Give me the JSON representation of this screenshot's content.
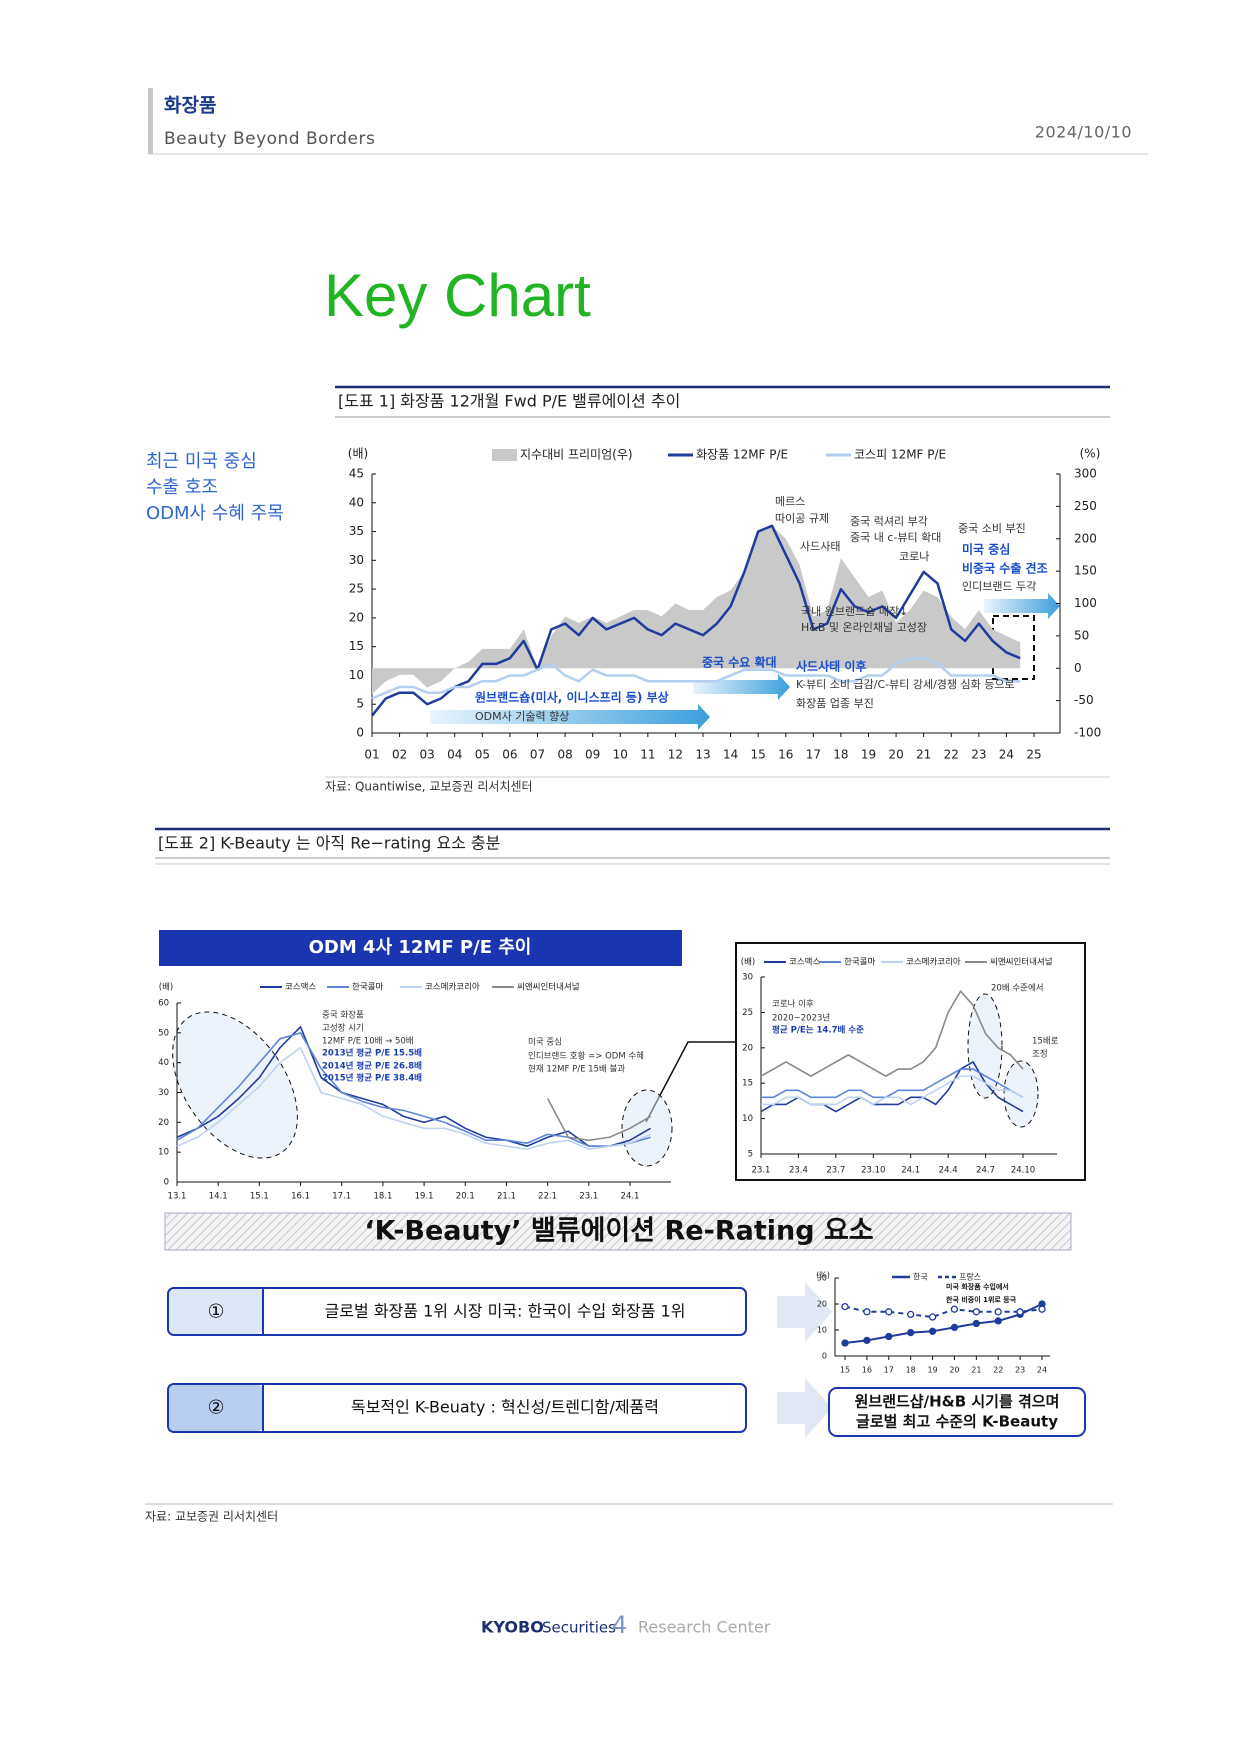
{
  "header": {
    "section": "화장품",
    "subtitle": "Beauty Beyond Borders",
    "date": "2024/10/10"
  },
  "key_chart": "Key Chart",
  "side_note": [
    "최근 미국 중심",
    "수출 호조",
    "ODM사 수혜 주목"
  ],
  "figure1": {
    "caption": "[도표 1] 화장품 12개월 Fwd P/E 밸류에이션 추이",
    "source": "자료: Quantiwise, 교보증권 리서치센터"
  },
  "figure2": {
    "caption": "[도표 2] K-Beauty 는 아직 Re−rating 요소 충분"
  },
  "rerating": {
    "title": "‘K-Beauty’ 밸류에이션 Re-Rating  요소",
    "items": [
      {
        "num": "①",
        "text": "글로벌 화장품 1위 시장 미국: 한국이 수입 화장품 1위"
      },
      {
        "num": "②",
        "text": "독보적인 K-Beuaty : 혁신성/트렌디함/제품력"
      }
    ],
    "callout": [
      "원브랜드샵/H&B 시기를 겪으며",
      "글로벌 최고 수준의 K-Beauty"
    ]
  },
  "source": "자료: 교보증권 리서치센터",
  "footer": {
    "brand": "KYOBO",
    "brand_suffix": "Securities",
    "page": 4,
    "label": "Research Center"
  },
  "chart_data": [
    {
      "type": "line",
      "y_label": "(배)",
      "y2_label": "(%)",
      "categories": [
        "01",
        null,
        "02",
        null,
        "03",
        null,
        "04",
        null,
        "05",
        null,
        "06",
        null,
        "07",
        null,
        "08",
        null,
        "09",
        null,
        "10",
        null,
        "11",
        null,
        "12",
        null,
        "13",
        null,
        "14",
        null,
        "15",
        null,
        "16",
        null,
        "17",
        null,
        "18",
        null,
        "19",
        null,
        "20",
        null,
        "21",
        null,
        "22",
        null,
        "23",
        null,
        "24",
        null,
        "25"
      ],
      "ylim": [
        0,
        45
      ],
      "yticks": [
        0,
        5,
        10,
        15,
        20,
        25,
        30,
        35,
        40,
        45
      ],
      "y2lim": [
        -100,
        300
      ],
      "y2ticks": [
        -100,
        -50,
        0,
        50,
        100,
        150,
        200,
        250,
        300
      ],
      "series": [
        {
          "name": "지수대비 프리미엄(우)",
          "color": "#c9c9c9",
          "axis": "y2",
          "style": "area",
          "values": [
            -40,
            -20,
            -10,
            -10,
            -30,
            -20,
            0,
            10,
            30,
            30,
            30,
            60,
            0,
            50,
            80,
            70,
            80,
            70,
            80,
            90,
            90,
            80,
            100,
            90,
            90,
            110,
            120,
            150,
            210,
            220,
            200,
            160,
            80,
            90,
            170,
            140,
            110,
            120,
            70,
            90,
            120,
            110,
            80,
            60,
            90,
            60,
            50,
            40,
            null
          ]
        },
        {
          "name": "화장품 12MF P/E",
          "color": "#1f3c9c",
          "values": [
            3,
            6,
            7,
            7,
            5,
            6,
            8,
            9,
            12,
            12,
            13,
            16,
            11,
            18,
            19,
            17,
            20,
            18,
            19,
            20,
            18,
            17,
            19,
            18,
            17,
            19,
            22,
            28,
            35,
            36,
            31,
            26,
            18,
            19,
            25,
            22,
            21,
            22,
            20,
            24,
            28,
            26,
            18,
            16,
            19,
            16,
            14,
            13,
            null
          ]
        },
        {
          "name": "코스피 12MF P/E",
          "color": "#b4cff0",
          "values": [
            6,
            7,
            8,
            8,
            7,
            7,
            8,
            8,
            9,
            9,
            10,
            10,
            11,
            12,
            10,
            9,
            11,
            10,
            10,
            10,
            9,
            9,
            9,
            9,
            9,
            9,
            10,
            11,
            11,
            11,
            10,
            10,
            10,
            10,
            9,
            9,
            10,
            10,
            12,
            13,
            13,
            12,
            10,
            10,
            10,
            10,
            9,
            9,
            null
          ]
        }
      ],
      "annotations": [
        "메르스",
        "따이공 규제",
        "사드사태",
        "중국 럭셔리 부각",
        "중국 내 c-뷰티 확대",
        "코로나",
        "중국 소비 부진",
        "미국 중심",
        "비중국 수출 견조",
        "인디브랜드 두각",
        "국내 원브랜드숍 매장↓",
        "H&B 및 온라인채널 고성장",
        "중국 수요 확대",
        "사드사태 이후",
        "K-뷰티 소비 급감/C-뷰티 강세/경쟁 심화 등으로",
        "화장품 업종 부진",
        "원브랜드숍(미사, 이니스프리 등) 부상",
        "ODM사 기술력 향상"
      ]
    },
    {
      "type": "line",
      "title": "ODM 4사 12MF P/E 추이",
      "y_label": "(배)",
      "categories": [
        "13.1",
        null,
        "14.1",
        null,
        "15.1",
        null,
        "16.1",
        null,
        "17.1",
        null,
        "18.1",
        null,
        "19.1",
        null,
        "20.1",
        null,
        "21.1",
        null,
        "22.1",
        null,
        "23.1",
        null,
        "24.1",
        null
      ],
      "ylim": [
        0,
        60
      ],
      "yticks": [
        0,
        10,
        20,
        30,
        40,
        50,
        60
      ],
      "series": [
        {
          "name": "코스맥스",
          "color": "#1f3c9c",
          "values": [
            15,
            18,
            22,
            28,
            35,
            45,
            52,
            35,
            30,
            28,
            26,
            22,
            20,
            22,
            18,
            15,
            14,
            12,
            15,
            17,
            12,
            12,
            14,
            18
          ]
        },
        {
          "name": "한국콜마",
          "color": "#5f86d6",
          "values": [
            14,
            18,
            25,
            32,
            40,
            48,
            50,
            38,
            30,
            27,
            25,
            24,
            22,
            20,
            17,
            14,
            14,
            13,
            16,
            15,
            12,
            12,
            13,
            15
          ]
        },
        {
          "name": "코스메카코리아",
          "color": "#bcd2f2",
          "values": [
            12,
            15,
            20,
            26,
            32,
            40,
            45,
            30,
            28,
            26,
            22,
            20,
            18,
            18,
            16,
            13,
            12,
            11,
            13,
            14,
            11,
            12,
            13,
            16
          ]
        },
        {
          "name": "씨앤씨인터내셔널",
          "color": "#8a8a8a",
          "values": [
            null,
            null,
            null,
            null,
            null,
            null,
            null,
            null,
            null,
            null,
            null,
            null,
            null,
            null,
            null,
            null,
            null,
            null,
            28,
            15,
            14,
            15,
            18,
            22
          ]
        }
      ],
      "annotations": [
        "중국 화장품",
        "고성장 시기",
        "12MF P/E 10배 → 50배",
        "2013년 평균 P/E 15.5배",
        "2014년 평균 P/E 26.8배",
        "2015년 평균 P/E 38.4배",
        "미국 중심",
        "인디브랜드 호황 => ODM 수혜",
        "현재 12MF P/E 15배 불과"
      ]
    },
    {
      "type": "line",
      "y_label": "(배)",
      "categories": [
        "23.1",
        null,
        null,
        "23.4",
        null,
        null,
        "23.7",
        null,
        null,
        "23.10",
        null,
        null,
        "24.1",
        null,
        null,
        "24.4",
        null,
        null,
        "24.7",
        null,
        null,
        "24.10"
      ],
      "ylim": [
        5,
        30
      ],
      "yticks": [
        5,
        10,
        15,
        20,
        25,
        30
      ],
      "series": [
        {
          "name": "코스맥스",
          "color": "#1f3c9c",
          "values": [
            11,
            12,
            12,
            13,
            12,
            12,
            11,
            12,
            13,
            12,
            12,
            12,
            13,
            13,
            12,
            14,
            17,
            18,
            15,
            13,
            12,
            11
          ]
        },
        {
          "name": "한국콜마",
          "color": "#5f86d6",
          "values": [
            13,
            13,
            14,
            14,
            13,
            13,
            13,
            14,
            14,
            13,
            13,
            14,
            14,
            14,
            15,
            16,
            17,
            17,
            16,
            15,
            14,
            13
          ]
        },
        {
          "name": "코스메카코리아",
          "color": "#bcd2f2",
          "values": [
            12,
            12,
            13,
            13,
            12,
            12,
            12,
            13,
            13,
            12,
            13,
            13,
            12,
            13,
            14,
            15,
            16,
            16,
            15,
            14,
            14,
            13
          ]
        },
        {
          "name": "씨앤씨인터내셔널",
          "color": "#8a8a8a",
          "values": [
            16,
            17,
            18,
            17,
            16,
            17,
            18,
            19,
            18,
            17,
            16,
            17,
            17,
            18,
            20,
            25,
            28,
            26,
            22,
            20,
            19,
            17
          ]
        }
      ],
      "annotations": [
        "코로나 이후",
        "2020~2023년",
        "평균 P/E는 14.7배 수준",
        "20배 수준에서",
        "15배로",
        "조정"
      ]
    },
    {
      "type": "line",
      "y_label": "(%)",
      "markers": true,
      "categories": [
        "15",
        "16",
        "17",
        "18",
        "19",
        "20",
        "21",
        "22",
        "23",
        "24"
      ],
      "ylim": [
        0,
        30
      ],
      "yticks": [
        0,
        10,
        20,
        30
      ],
      "series": [
        {
          "name": "한국",
          "color": "#1f3c9c",
          "values": [
            5,
            6,
            7.5,
            9,
            9.5,
            11,
            12.5,
            13.5,
            16,
            20
          ]
        },
        {
          "name": "프랑스",
          "color": "#1f3c9c",
          "dash": true,
          "values": [
            19,
            17,
            17,
            16,
            15,
            18,
            17,
            17,
            17,
            18
          ]
        }
      ],
      "annotations": [
        "미국 화장품 수입에서",
        "한국 비중이 1위로 등극"
      ]
    }
  ]
}
